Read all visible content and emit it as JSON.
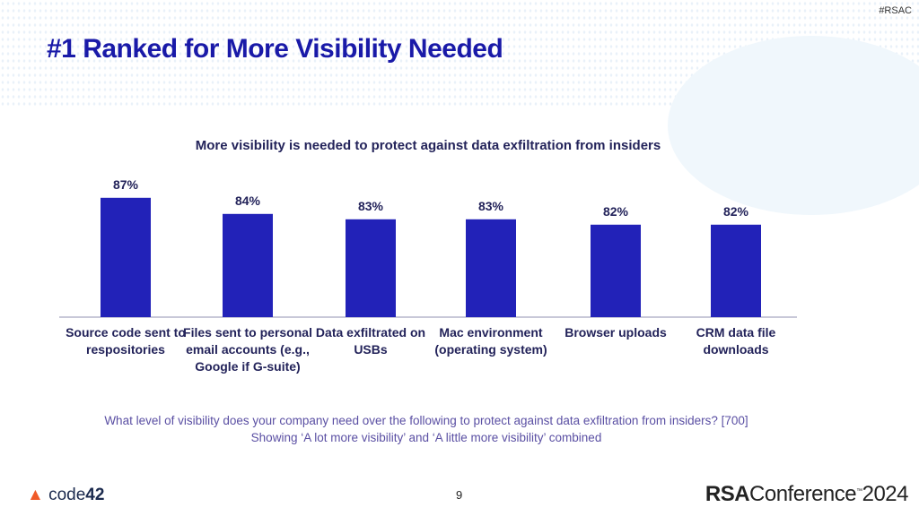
{
  "header": {
    "title": "#1 Ranked for More Visibility Needed",
    "hashtag": "#RSAC"
  },
  "chart_data": {
    "type": "bar",
    "title": "More visibility is needed to protect against data exfiltration from insiders",
    "categories": [
      "Source code sent to respositories",
      "Files sent to personal email accounts (e.g., Google if G-suite)",
      "Data exfiltrated on USBs",
      "Mac environment (operating system)",
      "Browser uploads",
      "CRM data file downloads"
    ],
    "values": [
      87,
      84,
      83,
      83,
      82,
      82
    ],
    "data_labels": [
      "87%",
      "84%",
      "83%",
      "83%",
      "82%",
      "82%"
    ],
    "unit": "%",
    "bar_color": "#2222b8",
    "grid": false,
    "legend": "none"
  },
  "footnote": "What level of visibility does your company need over the following to protect against data exfiltration from insiders? [700] Showing ‘A lot more visibility’ and ‘A little more visibility’ combined",
  "footer": {
    "page": "9",
    "left_logo": "code42",
    "right_logo": "RSAConference 2024"
  }
}
